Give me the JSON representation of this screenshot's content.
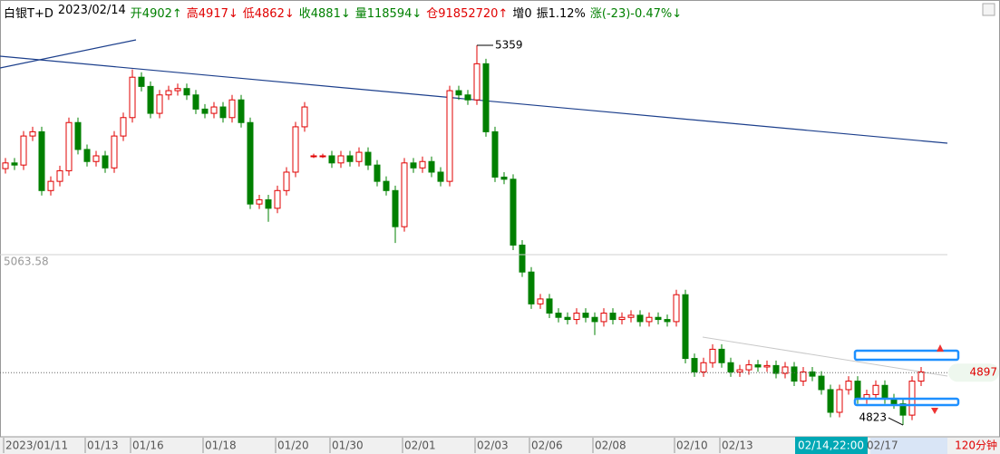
{
  "chart_data": {
    "type": "candlestick",
    "header": [
      {
        "text": "白银T+D",
        "color": "#000000"
      },
      {
        "text": "2023/02/14",
        "color": "#000000"
      },
      {
        "text": "开4902↑",
        "color": "#008000"
      },
      {
        "text": "高4917↓",
        "color": "#e00000"
      },
      {
        "text": "低4862↓",
        "color": "#e00000"
      },
      {
        "text": "收4881↓",
        "color": "#008000"
      },
      {
        "text": "量118594↓",
        "color": "#008000"
      },
      {
        "text": "仓91852720↑",
        "color": "#e00000"
      },
      {
        "text": "增0",
        "color": "#000000"
      },
      {
        "text": "振1.12%",
        "color": "#000000"
      },
      {
        "text": "涨(-23)-0.47%↓",
        "color": "#008000"
      }
    ],
    "categories": [
      "2023/01/11",
      null,
      null,
      null,
      null,
      null,
      null,
      null,
      null,
      "01/13",
      null,
      null,
      null,
      null,
      "01/16",
      null,
      null,
      null,
      null,
      null,
      null,
      null,
      "01/18",
      null,
      null,
      null,
      null,
      null,
      null,
      null,
      "01/20",
      null,
      null,
      null,
      null,
      null,
      "01/30",
      null,
      null,
      null,
      null,
      null,
      null,
      null,
      "02/01",
      null,
      null,
      null,
      null,
      null,
      null,
      null,
      "02/03",
      null,
      null,
      null,
      null,
      null,
      "02/06",
      null,
      null,
      null,
      null,
      null,
      null,
      "02/08",
      null,
      null,
      null,
      null,
      null,
      null,
      null,
      null,
      "02/10",
      null,
      null,
      null,
      null,
      "02/13",
      null,
      null,
      null,
      null,
      null,
      null,
      null,
      null,
      null,
      null,
      null,
      null,
      null,
      null,
      null,
      "02/17",
      null,
      null,
      null,
      null,
      null,
      null
    ],
    "open": [
      5185,
      5193,
      5190,
      5231,
      5237,
      5154,
      5167,
      5182,
      5250,
      5212,
      5195,
      5203,
      5186,
      5231,
      5257,
      5314,
      5301,
      5263,
      5289,
      5295,
      5298,
      5289,
      5269,
      5263,
      5272,
      5257,
      5282,
      5250,
      5135,
      5141,
      5129,
      5154,
      5180,
      5244,
      5203,
      5203,
      5203,
      5193,
      5203,
      5195,
      5208,
      5190,
      5167,
      5154,
      5103,
      5193,
      5186,
      5195,
      5180,
      5167,
      5295,
      5289,
      5282,
      5333,
      5237,
      5173,
      5170,
      5077,
      5039,
      4994,
      5001,
      4981,
      4975,
      4972,
      4981,
      4975,
      4969,
      4981,
      4972,
      4975,
      4978,
      4969,
      4975,
      4972,
      4969,
      5007,
      4917,
      4898,
      4911,
      4930,
      4911,
      4898,
      4901,
      4908,
      4905,
      4907,
      4896,
      4905,
      4885,
      4898,
      4892,
      4873,
      4841,
      4873,
      4885,
      4860,
      4866,
      4879,
      4860,
      4853,
      4837,
      4885
    ],
    "high": [
      5200,
      5200,
      5238,
      5244,
      5244,
      5174,
      5189,
      5257,
      5257,
      5219,
      5210,
      5210,
      5238,
      5264,
      5325,
      5321,
      5308,
      5296,
      5302,
      5305,
      5305,
      5296,
      5276,
      5279,
      5279,
      5289,
      5289,
      5257,
      5148,
      5148,
      5161,
      5187,
      5251,
      5279,
      5206,
      5206,
      5210,
      5210,
      5210,
      5215,
      5215,
      5197,
      5174,
      5161,
      5200,
      5200,
      5202,
      5202,
      5187,
      5302,
      5302,
      5296,
      5359,
      5340,
      5244,
      5180,
      5177,
      5084,
      5046,
      5008,
      5008,
      4988,
      4982,
      4988,
      4988,
      4982,
      4988,
      4988,
      4982,
      4985,
      4985,
      4982,
      4982,
      4979,
      5014,
      5014,
      4924,
      4918,
      4937,
      4937,
      4918,
      4908,
      4915,
      4915,
      4914,
      4914,
      4912,
      4912,
      4905,
      4905,
      4899,
      4880,
      4880,
      4892,
      4892,
      4873,
      4886,
      4886,
      4867,
      4860,
      4892,
      4905
    ],
    "low": [
      5178,
      5183,
      5183,
      5224,
      5147,
      5147,
      5160,
      5175,
      5205,
      5188,
      5188,
      5179,
      5179,
      5224,
      5250,
      5294,
      5256,
      5256,
      5282,
      5288,
      5282,
      5262,
      5256,
      5256,
      5250,
      5250,
      5243,
      5128,
      5128,
      5110,
      5122,
      5147,
      5173,
      5237,
      5200,
      5200,
      5186,
      5186,
      5188,
      5188,
      5183,
      5160,
      5147,
      5080,
      5096,
      5179,
      5179,
      5173,
      5160,
      5160,
      5282,
      5275,
      5275,
      5230,
      5166,
      5163,
      5070,
      5032,
      4987,
      4987,
      4974,
      4968,
      4965,
      4965,
      4968,
      4950,
      4962,
      4965,
      4965,
      4968,
      4962,
      4962,
      4965,
      4962,
      4962,
      4910,
      4891,
      4891,
      4904,
      4904,
      4891,
      4891,
      4894,
      4898,
      4898,
      4889,
      4889,
      4878,
      4878,
      4885,
      4866,
      4834,
      4834,
      4866,
      4853,
      4853,
      4859,
      4853,
      4846,
      4823,
      4830,
      4878
    ],
    "close": [
      5193,
      5190,
      5231,
      5237,
      5154,
      5167,
      5182,
      5250,
      5212,
      5195,
      5203,
      5186,
      5231,
      5257,
      5314,
      5301,
      5263,
      5289,
      5295,
      5298,
      5289,
      5269,
      5263,
      5272,
      5257,
      5282,
      5250,
      5135,
      5141,
      5129,
      5154,
      5180,
      5244,
      5272,
      5203,
      5203,
      5193,
      5203,
      5195,
      5208,
      5190,
      5167,
      5154,
      5103,
      5193,
      5186,
      5195,
      5180,
      5167,
      5295,
      5289,
      5282,
      5333,
      5237,
      5173,
      5170,
      5077,
      5039,
      4994,
      5001,
      4981,
      4975,
      4972,
      4981,
      4975,
      4969,
      4981,
      4972,
      4975,
      4978,
      4969,
      4975,
      4972,
      4969,
      5007,
      4917,
      4898,
      4911,
      4930,
      4911,
      4898,
      4901,
      4908,
      4905,
      4907,
      4896,
      4905,
      4885,
      4898,
      4892,
      4873,
      4841,
      4873,
      4885,
      4860,
      4866,
      4879,
      4860,
      4853,
      4837,
      4885,
      4898
    ],
    "ylim": [
      4809,
      5423
    ],
    "colors": {
      "up": "#e00000",
      "down": "#008000"
    },
    "reference": 5063.58,
    "last_price": 4897,
    "high_label": 5359,
    "low_label": 4823,
    "crosshair_label": "02/14,22:00",
    "period": "120分钟"
  }
}
